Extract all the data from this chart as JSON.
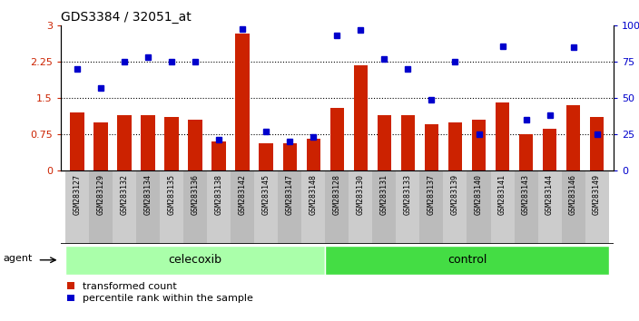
{
  "title": "GDS3384 / 32051_at",
  "categories": [
    "GSM283127",
    "GSM283129",
    "GSM283132",
    "GSM283134",
    "GSM283135",
    "GSM283136",
    "GSM283138",
    "GSM283142",
    "GSM283145",
    "GSM283147",
    "GSM283148",
    "GSM283128",
    "GSM283130",
    "GSM283131",
    "GSM283133",
    "GSM283137",
    "GSM283139",
    "GSM283140",
    "GSM283141",
    "GSM283143",
    "GSM283144",
    "GSM283146",
    "GSM283149"
  ],
  "bar_values": [
    1.2,
    1.0,
    1.15,
    1.15,
    1.1,
    1.05,
    0.6,
    2.83,
    0.55,
    0.55,
    0.65,
    1.3,
    2.18,
    1.15,
    1.15,
    0.95,
    1.0,
    1.05,
    1.4,
    0.75,
    0.85,
    1.35,
    1.1
  ],
  "percentile_values": [
    70,
    57,
    75,
    78,
    75,
    75,
    21,
    98,
    27,
    20,
    23,
    93,
    97,
    77,
    70,
    49,
    75,
    25,
    86,
    35,
    38,
    85,
    25
  ],
  "celecoxib_count": 11,
  "control_count": 12,
  "bar_color": "#cc2200",
  "dot_color": "#0000cc",
  "ylim_left": [
    0,
    3
  ],
  "ylim_right": [
    0,
    100
  ],
  "yticks_left": [
    0,
    0.75,
    1.5,
    2.25,
    3
  ],
  "ytick_labels_left": [
    "0",
    "0.75",
    "1.5",
    "2.25",
    "3"
  ],
  "yticks_right": [
    0,
    25,
    50,
    75,
    100
  ],
  "ytick_labels_right": [
    "0",
    "25",
    "50",
    "75",
    "100%"
  ],
  "hlines": [
    0.75,
    1.5,
    2.25
  ],
  "bg_plot": "#ffffff",
  "bg_xtick_odd": "#cccccc",
  "bg_xtick_even": "#bbbbbb",
  "bg_agent_celecoxib": "#aaffaa",
  "bg_agent_control": "#44dd44",
  "legend_red_label": "transformed count",
  "legend_blue_label": "percentile rank within the sample",
  "agent_label": "agent"
}
